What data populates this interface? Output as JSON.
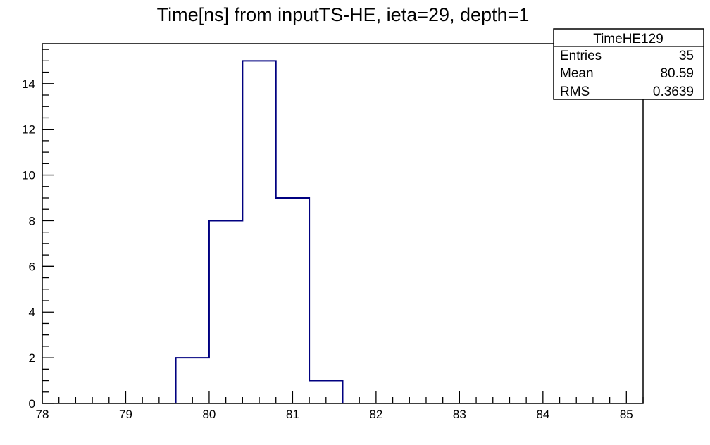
{
  "chart_data": {
    "type": "histogram",
    "title": "Time[ns] from inputTS-HE, ieta=29, depth=1",
    "xlim": [
      78,
      85.2
    ],
    "ylim": [
      0,
      15.75
    ],
    "x_tick_labels": [
      "78",
      "79",
      "80",
      "81",
      "82",
      "83",
      "84",
      "85"
    ],
    "y_tick_labels": [
      "0",
      "2",
      "4",
      "6",
      "8",
      "10",
      "12",
      "14"
    ],
    "bin_width": 0.4,
    "bins": [
      {
        "low": 79.6,
        "high": 80.0,
        "count": 2
      },
      {
        "low": 80.0,
        "high": 80.4,
        "count": 8
      },
      {
        "low": 80.4,
        "high": 80.8,
        "count": 15
      },
      {
        "low": 80.8,
        "high": 81.2,
        "count": 9
      },
      {
        "low": 81.2,
        "high": 81.6,
        "count": 1
      }
    ],
    "line_color": "#000080",
    "stats_box": {
      "name": "TimeHE129",
      "rows": [
        {
          "label": "Entries",
          "value": "35"
        },
        {
          "label": "Mean",
          "value": "80.59"
        },
        {
          "label": "RMS",
          "value": "0.3639"
        }
      ]
    }
  }
}
